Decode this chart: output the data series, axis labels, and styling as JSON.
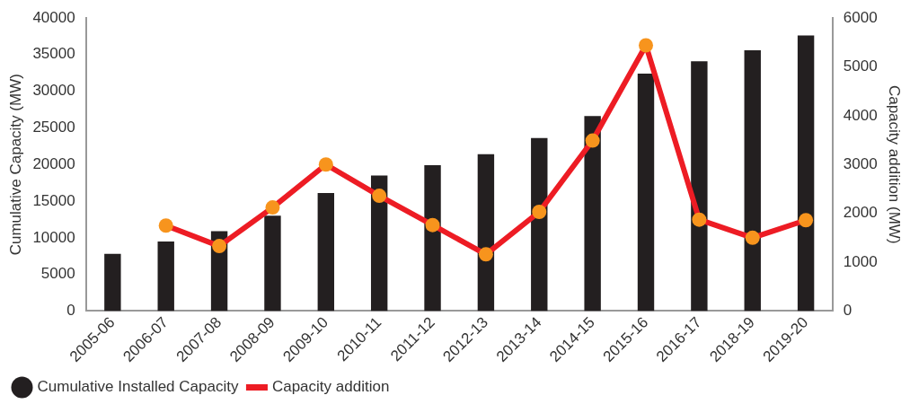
{
  "chart_data": {
    "type": "bar",
    "categories": [
      "2005-06",
      "2006-07",
      "2007-08",
      "2008-09",
      "2009-10",
      "2010-11",
      "2011-12",
      "2012-13",
      "2013-14",
      "2014-15",
      "2015-16",
      "2016-17",
      "2018-19",
      "2019-20"
    ],
    "series": [
      {
        "name": "Cumulative Installed Capacity",
        "color": "#231f20",
        "values": [
          7800,
          9500,
          10900,
          13000,
          16100,
          18500,
          19900,
          21400,
          23600,
          26600,
          32400,
          34100,
          35600,
          37600
        ]
      },
      {
        "name": "Capacity addition",
        "type": "line",
        "axis": "y2",
        "color": "#ed1c24",
        "values": [
          null,
          1750,
          1330,
          2120,
          3000,
          2360,
          1760,
          1160,
          2030,
          3490,
          5440,
          1870,
          1500,
          1860
        ]
      }
    ],
    "ylabel": "Cumulative Capacity (MW)",
    "y2label": "Capacity addition (MW)",
    "ylim": [
      0,
      40000
    ],
    "yticks": [
      0,
      5000,
      10000,
      15000,
      20000,
      25000,
      30000,
      35000,
      40000
    ],
    "y2lim": [
      0,
      6000
    ],
    "y2ticks": [
      0,
      1000,
      2000,
      3000,
      4000,
      5000,
      6000
    ],
    "grid": false,
    "legend": "bottom left",
    "marker": "circle"
  }
}
